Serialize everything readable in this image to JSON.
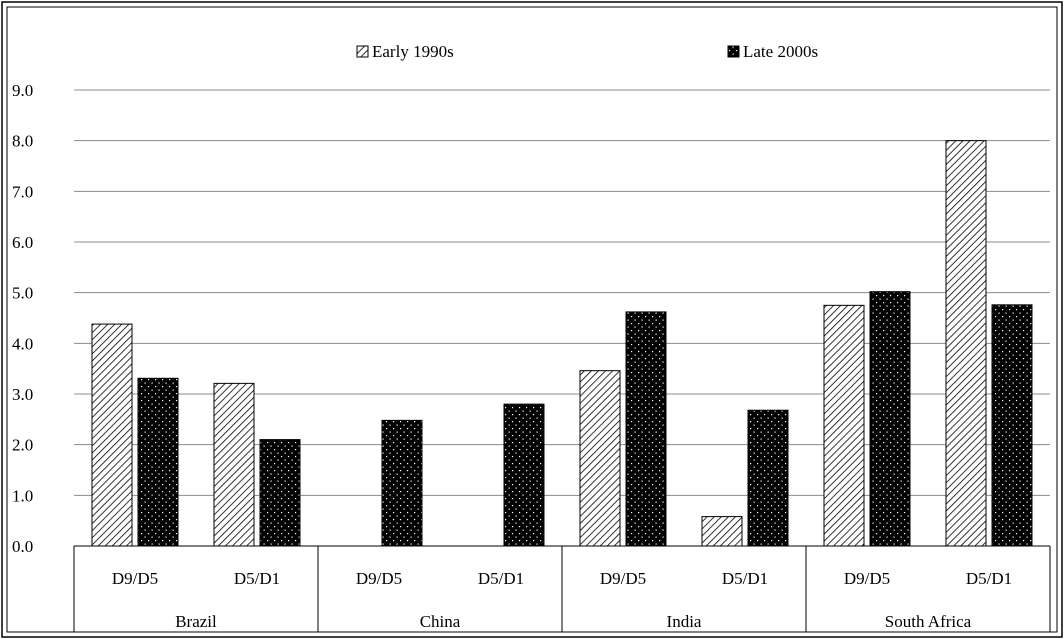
{
  "chart_data": {
    "type": "bar",
    "title": "",
    "xlabel": "",
    "ylabel": "",
    "ylim": [
      0,
      9
    ],
    "yticks": [
      "0.0",
      "1.0",
      "2.0",
      "3.0",
      "4.0",
      "5.0",
      "6.0",
      "7.0",
      "8.0",
      "9.0"
    ],
    "grid": "horizontal",
    "legend_position": "top",
    "groups": [
      {
        "label": "Brazil",
        "categories": [
          "D9/D5",
          "D5/D1"
        ]
      },
      {
        "label": "China",
        "categories": [
          "D9/D5",
          "D5/D1"
        ]
      },
      {
        "label": "India",
        "categories": [
          "D9/D5",
          "D5/D1"
        ]
      },
      {
        "label": "South Africa",
        "categories": [
          "D9/D5",
          "D5/D1"
        ]
      }
    ],
    "series": [
      {
        "name": "Early 1990s",
        "pattern": "diagonal-hatch",
        "color": "#000000",
        "values": [
          4.38,
          3.21,
          null,
          null,
          3.46,
          0.58,
          4.75,
          8.0
        ]
      },
      {
        "name": "Late 2000s",
        "pattern": "dotted-black",
        "color": "#000000",
        "values": [
          3.31,
          2.1,
          2.48,
          2.8,
          4.62,
          2.68,
          5.02,
          4.76
        ]
      }
    ]
  }
}
